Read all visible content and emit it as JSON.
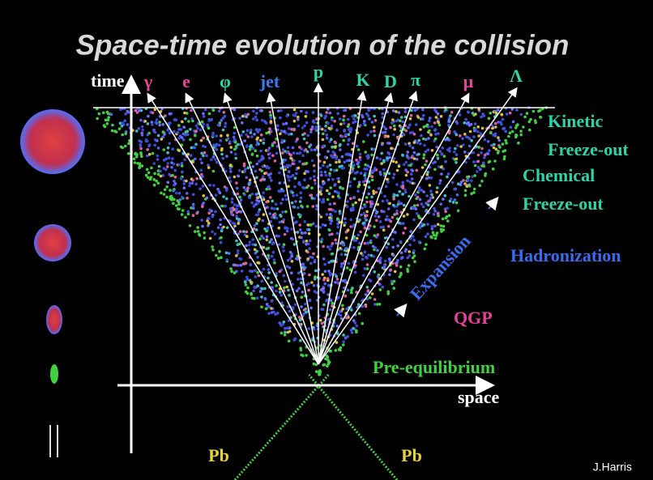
{
  "title": "Space-time evolution of the collision",
  "axes": {
    "time": "time",
    "space": "space"
  },
  "particles": [
    {
      "label": "γ",
      "color": "#e8469a"
    },
    {
      "label": "e",
      "color": "#e8469a"
    },
    {
      "label": "φ",
      "color": "#2fd3a8"
    },
    {
      "label": "jet",
      "color": "#3a7cf0"
    },
    {
      "label": "p",
      "color": "#2fd3a8"
    },
    {
      "label": "K",
      "color": "#2fd3a8"
    },
    {
      "label": "D",
      "color": "#2fd3a8"
    },
    {
      "label": "π",
      "color": "#2fd3a8"
    },
    {
      "label": "μ",
      "color": "#e8469a"
    },
    {
      "label": "Λ",
      "color": "#2fd3a8"
    }
  ],
  "stages": [
    {
      "label": "Kinetic",
      "color": "#2fd3a8"
    },
    {
      "label": "Freeze-out",
      "color": "#2fd3a8"
    },
    {
      "label": "Chemical",
      "color": "#2fd3a8"
    },
    {
      "label": "Freeze-out",
      "color": "#2fd3a8"
    },
    {
      "label": "Hadronization",
      "color": "#3a6cf0"
    },
    {
      "label": "Expansion",
      "color": "#3a6cf0"
    },
    {
      "label": "QGP",
      "color": "#e8409a"
    },
    {
      "label": "Pre-equilibrium",
      "color": "#3fd23f"
    }
  ],
  "beams": [
    "Pb",
    "Pb"
  ],
  "credit": "J.Harris"
}
